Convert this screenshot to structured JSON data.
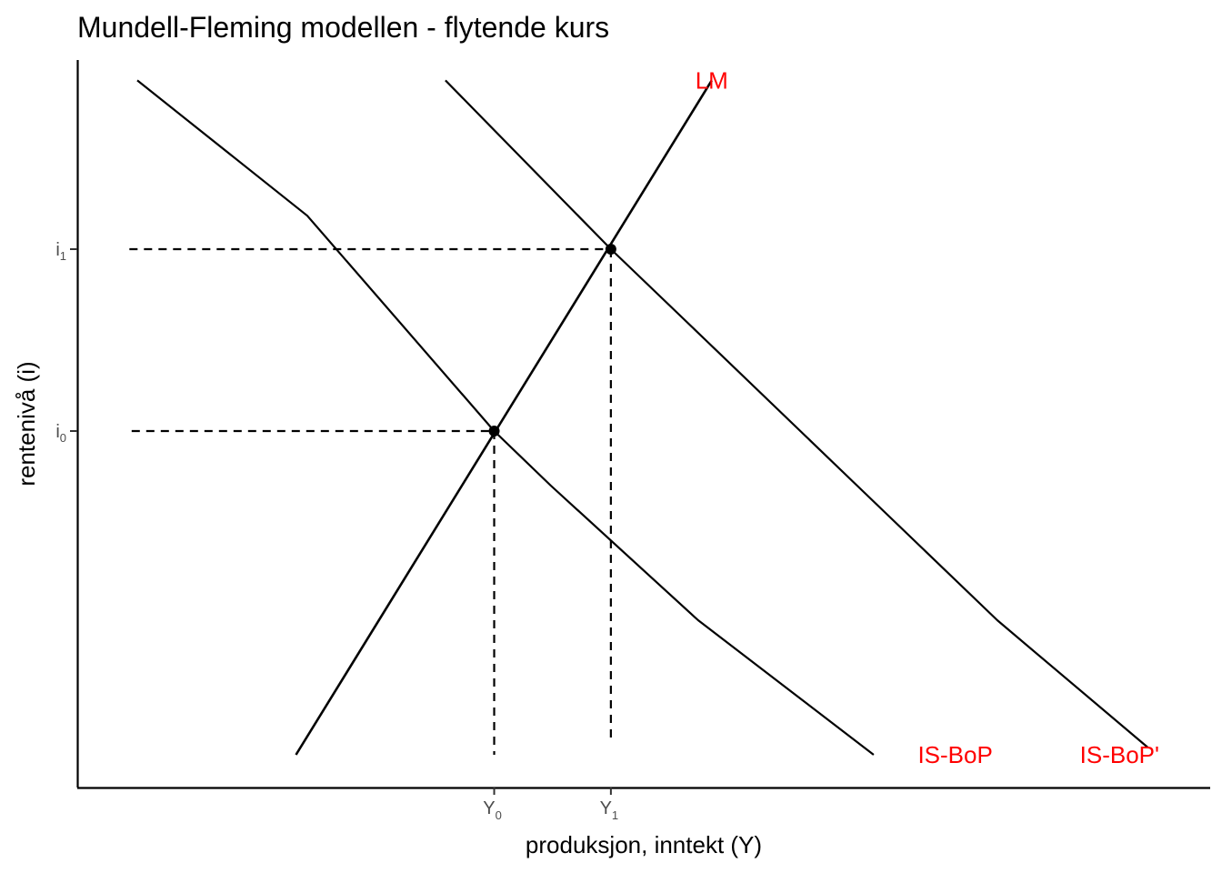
{
  "chart_data": {
    "type": "line",
    "title": "Mundell-Fleming modellen - flytende kurs",
    "xlabel": "produksjon, inntekt (Y)",
    "ylabel": "rentenivå (i)",
    "xlim": [
      0,
      10
    ],
    "ylim": [
      0,
      10
    ],
    "grid": false,
    "label_color": "#ff0000",
    "line_color": "#000000",
    "x_ticks": [
      {
        "value": 3.68,
        "base": "Y",
        "sub": "0"
      },
      {
        "value": 4.71,
        "base": "Y",
        "sub": "1"
      }
    ],
    "y_ticks": [
      {
        "value": 4.9,
        "base": "i",
        "sub": "0"
      },
      {
        "value": 7.4,
        "base": "i",
        "sub": "1"
      }
    ],
    "series": [
      {
        "name": "LM",
        "points": [
          [
            1.93,
            0.45
          ],
          [
            5.6,
            9.72
          ]
        ],
        "label_at": [
          5.6,
          9.72
        ]
      },
      {
        "name": "IS-BoP",
        "points": [
          [
            0.53,
            9.72
          ],
          [
            2.03,
            7.86
          ],
          [
            3.68,
            4.9
          ],
          [
            4.18,
            4.15
          ],
          [
            5.48,
            2.3
          ],
          [
            7.03,
            0.45
          ]
        ],
        "label_at": [
          7.75,
          0.45
        ]
      },
      {
        "name": "IS-BoP'",
        "points": [
          [
            3.25,
            9.72
          ],
          [
            4.71,
            7.4
          ],
          [
            5.58,
            6.1
          ],
          [
            6.85,
            4.2
          ],
          [
            8.12,
            2.3
          ],
          [
            9.45,
            0.55
          ]
        ],
        "label_at": [
          9.2,
          0.45
        ]
      }
    ],
    "equilibria": [
      {
        "x": 3.68,
        "y": 4.9
      },
      {
        "x": 4.71,
        "y": 7.4
      }
    ],
    "guides": [
      {
        "from": [
          0.48,
          4.9
        ],
        "to": [
          3.68,
          4.9
        ]
      },
      {
        "from": [
          3.68,
          4.9
        ],
        "to": [
          3.68,
          0.45
        ]
      },
      {
        "from": [
          0.46,
          7.4
        ],
        "to": [
          4.71,
          7.4
        ]
      },
      {
        "from": [
          4.71,
          7.4
        ],
        "to": [
          4.71,
          0.6
        ]
      }
    ]
  }
}
